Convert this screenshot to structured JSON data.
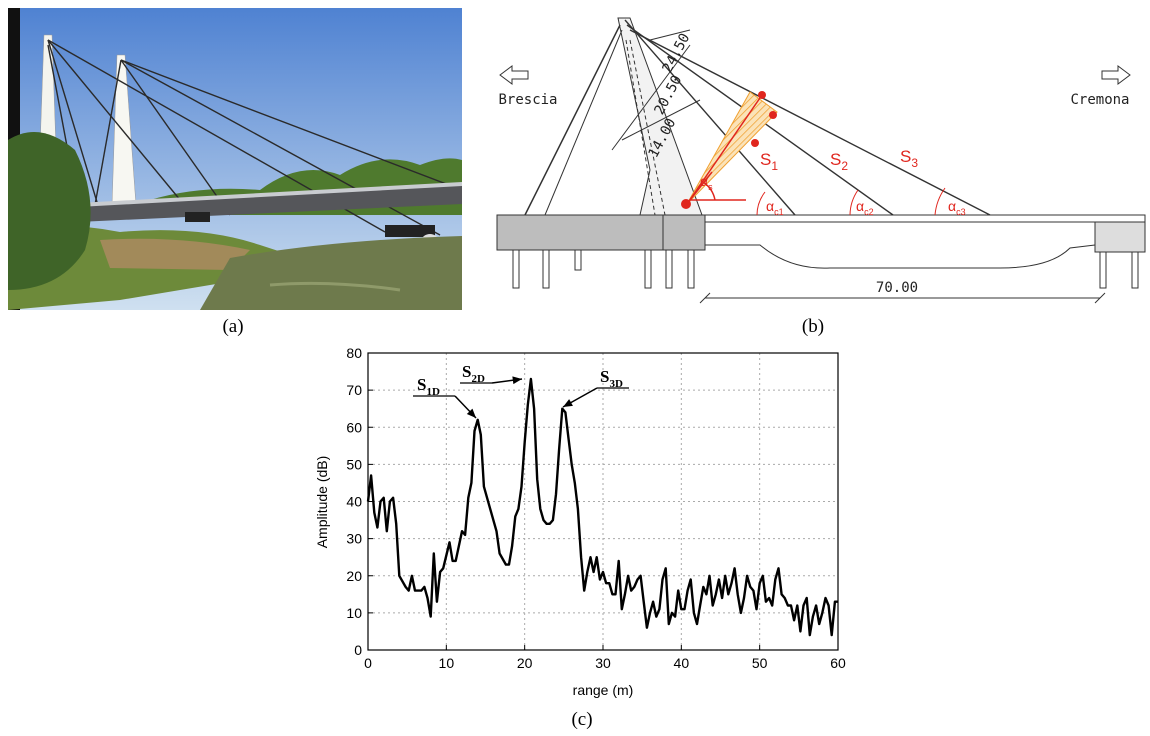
{
  "captions": [
    "(a)",
    "(b)",
    "(c)"
  ],
  "drawing": {
    "directions": [
      "Brescia",
      "Cremona"
    ],
    "dimensions": [
      "24.50",
      "20.50",
      "14.00",
      "70.00"
    ],
    "stays": [
      {
        "base": "S",
        "sub": "1"
      },
      {
        "base": "S",
        "sub": "2"
      },
      {
        "base": "S",
        "sub": "3"
      }
    ],
    "stay_angle": {
      "base": "α",
      "sub": "s"
    },
    "deck_angles": [
      {
        "base": "α",
        "sub": "c1"
      },
      {
        "base": "α",
        "sub": "c2"
      },
      {
        "base": "α",
        "sub": "c3"
      }
    ]
  },
  "chart_data": {
    "type": "line",
    "x_label": "range (m)",
    "y_label": "Amplitude (dB)",
    "x": [
      0,
      0.4,
      0.8,
      1.2,
      1.6,
      2,
      2.4,
      2.8,
      3.2,
      3.6,
      4,
      4.8,
      5.2,
      5.6,
      6,
      6.8,
      7.2,
      7.6,
      8,
      8.4,
      8.8,
      9.2,
      9.6,
      10.4,
      10.8,
      11.2,
      12,
      12.4,
      12.8,
      13.2,
      13.6,
      14,
      14.4,
      14.8,
      15.6,
      16.4,
      16.8,
      17.6,
      18,
      18.4,
      18.8,
      19.2,
      19.6,
      20,
      20.4,
      20.8,
      21.2,
      21.6,
      22,
      22.4,
      22.8,
      23.2,
      23.6,
      24,
      24.4,
      24.8,
      25.2,
      25.6,
      26,
      26.4,
      26.8,
      27.2,
      27.6,
      28,
      28.4,
      28.8,
      29.2,
      29.6,
      30,
      30.4,
      30.8,
      31.2,
      31.6,
      32,
      32.4,
      32.8,
      33.2,
      33.6,
      34,
      34.4,
      34.8,
      35.2,
      35.6,
      36,
      36.4,
      36.8,
      37.2,
      37.6,
      38,
      38.4,
      38.8,
      39.2,
      39.6,
      40,
      40.4,
      40.8,
      41.2,
      41.6,
      42,
      42.4,
      42.8,
      43.2,
      43.6,
      44,
      44.4,
      44.8,
      45.2,
      45.6,
      46,
      46.4,
      46.8,
      47.2,
      47.6,
      48,
      48.4,
      48.8,
      49.2,
      49.6,
      50,
      50.4,
      50.8,
      51.2,
      51.6,
      52,
      52.4,
      52.8,
      53.2,
      53.6,
      54,
      54.4,
      54.8,
      55.2,
      55.6,
      56,
      56.4,
      56.8,
      57.2,
      57.6,
      58,
      58.4,
      58.8,
      59.2,
      59.6,
      60
    ],
    "series": [
      {
        "color": "#000000",
        "values": [
          40,
          47,
          37,
          33,
          40,
          41,
          32,
          40,
          41,
          34,
          20,
          17,
          16,
          20,
          16,
          16,
          17,
          14,
          9,
          26,
          13,
          21,
          22,
          29,
          24,
          24,
          32,
          31,
          41,
          45,
          59,
          62,
          58,
          44,
          38,
          32,
          26,
          23,
          23,
          28,
          36,
          38,
          44,
          56,
          66,
          73,
          65,
          46,
          38,
          35,
          34,
          34,
          35,
          42,
          54,
          65,
          64,
          57,
          50,
          45,
          38,
          25,
          16,
          21,
          25,
          21,
          25,
          19,
          21,
          18,
          18,
          15,
          15,
          24,
          11,
          15,
          20,
          16,
          17,
          19,
          20,
          13,
          6,
          10,
          13,
          9,
          11,
          19,
          22,
          7,
          10,
          9,
          16,
          11,
          11,
          16,
          19,
          10,
          7,
          12,
          17,
          15,
          20,
          12,
          15,
          19,
          14,
          20,
          15,
          18,
          22,
          15,
          10,
          14,
          20,
          17,
          16,
          11,
          18,
          20,
          13,
          14,
          12,
          19,
          22,
          15,
          14,
          12,
          12,
          8,
          12,
          5,
          12,
          14,
          4,
          9,
          12,
          7,
          10,
          14,
          12,
          4,
          13,
          13
        ]
      }
    ],
    "xlim": [
      0,
      60
    ],
    "ylim": [
      0,
      80
    ],
    "xticks": [
      0,
      10,
      20,
      30,
      40,
      50,
      60
    ],
    "yticks": [
      0,
      10,
      20,
      30,
      40,
      50,
      60,
      70,
      80
    ],
    "grid": true,
    "annotations": [
      {
        "base": "S",
        "sub": "1D"
      },
      {
        "base": "S",
        "sub": "2D"
      },
      {
        "base": "S",
        "sub": "3D"
      }
    ]
  }
}
